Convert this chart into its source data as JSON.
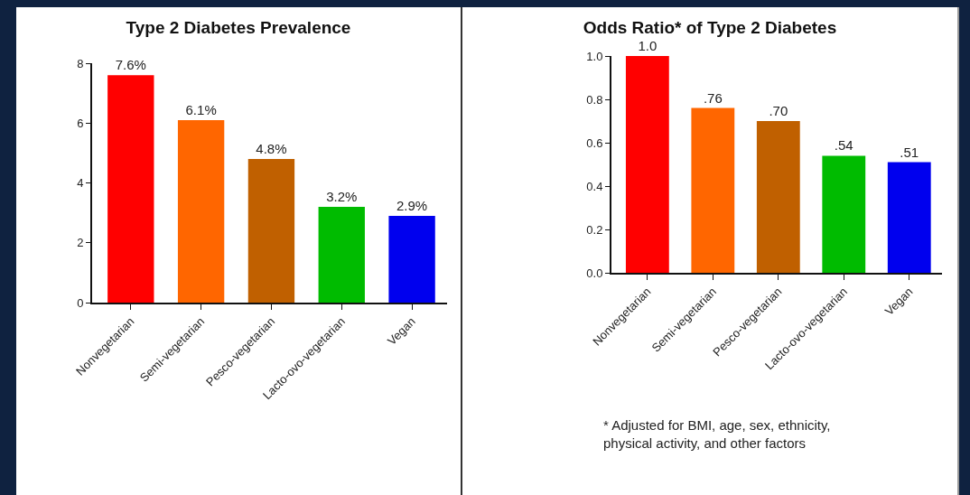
{
  "chart_data": [
    {
      "type": "bar",
      "title": "Type 2 Diabetes Prevalence",
      "categories": [
        "Nonvegetarian",
        "Semi-vegetarian",
        "Pesco-vegetarian",
        "Lacto-ovo-vegetarian",
        "Vegan"
      ],
      "values": [
        7.6,
        6.1,
        4.8,
        3.2,
        2.9
      ],
      "colors": [
        "#ff0000",
        "#ff6600",
        "#c06000",
        "#00bb00",
        "#0000ee"
      ],
      "value_labels": [
        "7.6%",
        "6.1%",
        "4.8%",
        "3.2%",
        "2.9%"
      ],
      "ylim": [
        0,
        8
      ],
      "yticks": [
        0,
        2,
        4,
        6,
        8
      ],
      "grid": false
    },
    {
      "type": "bar",
      "title": "Odds Ratio* of Type 2 Diabetes",
      "categories": [
        "Nonvegetarian",
        "Semi-vegetarian",
        "Pesco-vegetarian",
        "Lacto-ovo-vegetarian",
        "Vegan"
      ],
      "values": [
        1.0,
        0.76,
        0.7,
        0.54,
        0.51
      ],
      "colors": [
        "#ff0000",
        "#ff6600",
        "#c06000",
        "#00bb00",
        "#0000ee"
      ],
      "value_labels": [
        "1.0",
        ".76",
        ".70",
        ".54",
        ".51"
      ],
      "ylim": [
        0,
        1
      ],
      "yticks": [
        {
          "value": 0,
          "label": "0.0"
        },
        {
          "value": 0.2,
          "label": "0.2"
        },
        {
          "value": 0.4,
          "label": "0.4"
        },
        {
          "value": 0.6,
          "label": "0.6"
        },
        {
          "value": 0.8,
          "label": "0.8"
        },
        {
          "value": 1,
          "label": "1.0"
        }
      ],
      "grid": false,
      "annotations": [
        "* Adjusted for BMI, age, sex, ethnicity,\nphysical activity, and other factors"
      ]
    }
  ]
}
